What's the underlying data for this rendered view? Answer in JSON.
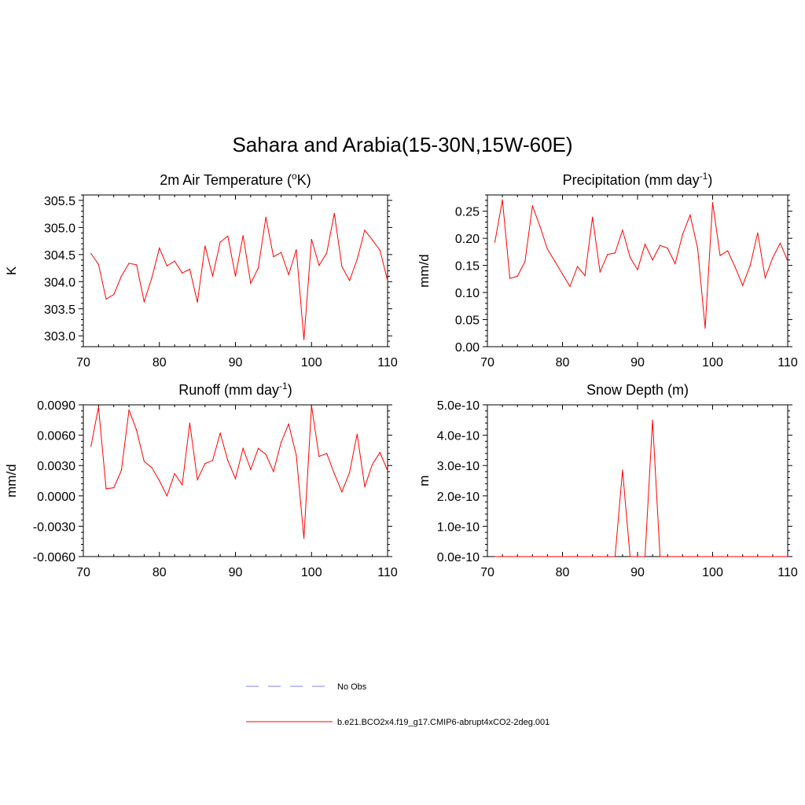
{
  "figure": {
    "title": "Sahara and Arabia(15-30N,15W-60E)"
  },
  "colors": {
    "model_line": "#ff0000",
    "obs_line": "#9999ff",
    "axis": "#000000"
  },
  "legend": {
    "obs_label": "No Obs",
    "model_label": "b.e21.BCO2x4.f19_g17.CMIP6-abrupt4xCO2-2deg.001"
  },
  "chart_data": [
    {
      "type": "line",
      "id": "temp",
      "title_main": "2m Air Temperature (",
      "title_sup": "o",
      "title_tail": "K)",
      "ylabel": "K",
      "xlim": [
        70,
        110
      ],
      "ylim": [
        302.8,
        305.6
      ],
      "xticks": [
        70,
        80,
        90,
        100,
        110
      ],
      "xtick_labels": [
        "70",
        "80",
        "90",
        "100",
        "110"
      ],
      "yticks": [
        303.0,
        303.5,
        304.0,
        304.5,
        305.0,
        305.5
      ],
      "ytick_labels": [
        "303.0",
        "303.5",
        "304.0",
        "304.5",
        "305.0",
        "305.5"
      ],
      "series": [
        {
          "name": "b.e21.BCO2x4.f19_g17.CMIP6-abrupt4xCO2-2deg.001",
          "x": [
            71,
            72,
            73,
            74,
            75,
            76,
            77,
            78,
            79,
            80,
            81,
            82,
            83,
            84,
            85,
            86,
            87,
            88,
            89,
            90,
            91,
            92,
            93,
            94,
            95,
            96,
            97,
            98,
            99,
            100,
            101,
            102,
            103,
            104,
            105,
            106,
            107,
            108,
            109,
            110
          ],
          "y": [
            304.52,
            304.32,
            303.68,
            303.76,
            304.1,
            304.34,
            304.31,
            303.63,
            304.07,
            304.62,
            304.29,
            304.38,
            304.16,
            304.23,
            303.62,
            304.66,
            304.1,
            304.73,
            304.84,
            304.1,
            304.85,
            303.97,
            304.25,
            305.19,
            304.46,
            304.54,
            304.13,
            304.59,
            302.93,
            304.78,
            304.3,
            304.53,
            305.26,
            304.28,
            304.02,
            304.41,
            304.95,
            304.77,
            304.58,
            304.02
          ]
        }
      ]
    },
    {
      "type": "line",
      "id": "precip",
      "title_main": "Precipitation (mm day",
      "title_sup": "-1",
      "title_tail": ")",
      "ylabel": "mm/d",
      "xlim": [
        70,
        110
      ],
      "ylim": [
        0.0,
        0.28
      ],
      "xticks": [
        70,
        80,
        90,
        100,
        110
      ],
      "xtick_labels": [
        "70",
        "80",
        "90",
        "100",
        "110"
      ],
      "yticks": [
        0.0,
        0.05,
        0.1,
        0.15,
        0.2,
        0.25
      ],
      "ytick_labels": [
        "0.00",
        "0.05",
        "0.10",
        "0.15",
        "0.20",
        "0.25"
      ],
      "series": [
        {
          "name": "b.e21.BCO2x4.f19_g17.CMIP6-abrupt4xCO2-2deg.001",
          "x": [
            71,
            72,
            73,
            74,
            75,
            76,
            77,
            78,
            79,
            80,
            81,
            82,
            83,
            84,
            85,
            86,
            87,
            88,
            89,
            90,
            91,
            92,
            93,
            94,
            95,
            96,
            97,
            98,
            99,
            100,
            101,
            102,
            103,
            104,
            105,
            106,
            107,
            108,
            109,
            110
          ],
          "y": [
            0.193,
            0.271,
            0.126,
            0.13,
            0.157,
            0.26,
            0.222,
            0.18,
            0.157,
            0.134,
            0.111,
            0.148,
            0.131,
            0.239,
            0.138,
            0.17,
            0.173,
            0.215,
            0.165,
            0.142,
            0.189,
            0.16,
            0.187,
            0.182,
            0.153,
            0.207,
            0.243,
            0.182,
            0.034,
            0.266,
            0.168,
            0.177,
            0.147,
            0.113,
            0.15,
            0.21,
            0.127,
            0.164,
            0.191,
            0.158
          ]
        }
      ]
    },
    {
      "type": "line",
      "id": "runoff",
      "title_main": "Runoff (mm day",
      "title_sup": "-1",
      "title_tail": ")",
      "ylabel": "mm/d",
      "xlim": [
        70,
        110
      ],
      "ylim": [
        -0.006,
        0.009
      ],
      "xticks": [
        70,
        80,
        90,
        100,
        110
      ],
      "xtick_labels": [
        "70",
        "80",
        "90",
        "100",
        "110"
      ],
      "yticks": [
        -0.006,
        -0.003,
        0.0,
        0.003,
        0.006,
        0.009
      ],
      "ytick_labels": [
        "-0.0060",
        "-0.0030",
        "0.0000",
        "0.0030",
        "0.0060",
        "0.0090"
      ],
      "series": [
        {
          "name": "b.e21.BCO2x4.f19_g17.CMIP6-abrupt4xCO2-2deg.001",
          "x": [
            71,
            72,
            73,
            74,
            75,
            76,
            77,
            78,
            79,
            80,
            81,
            82,
            83,
            84,
            85,
            86,
            87,
            88,
            89,
            90,
            91,
            92,
            93,
            94,
            95,
            96,
            97,
            98,
            99,
            100,
            101,
            102,
            103,
            104,
            105,
            106,
            107,
            108,
            109,
            110
          ],
          "y": [
            0.0049,
            0.0088,
            0.0007,
            0.0008,
            0.0025,
            0.0085,
            0.0065,
            0.0034,
            0.0028,
            0.0015,
            0.0,
            0.0022,
            0.0011,
            0.0072,
            0.0016,
            0.0032,
            0.0035,
            0.0062,
            0.0035,
            0.0017,
            0.0047,
            0.0026,
            0.0047,
            0.0041,
            0.0024,
            0.0053,
            0.0071,
            0.004,
            -0.0042,
            0.0089,
            0.0039,
            0.0042,
            0.0022,
            0.0004,
            0.0023,
            0.0061,
            0.0009,
            0.0031,
            0.0043,
            0.0025
          ]
        }
      ]
    },
    {
      "type": "line",
      "id": "snow",
      "title_main": "Snow Depth (m)",
      "title_sup": "",
      "title_tail": "",
      "ylabel": "m",
      "xlim": [
        70,
        110
      ],
      "ylim": [
        0.0,
        5e-10
      ],
      "xticks": [
        70,
        80,
        90,
        100,
        110
      ],
      "xtick_labels": [
        "70",
        "80",
        "90",
        "100",
        "110"
      ],
      "yticks": [
        0.0,
        1e-10,
        2e-10,
        3e-10,
        4e-10,
        5e-10
      ],
      "ytick_labels": [
        "0.0e-10",
        "1.0e-10",
        "2.0e-10",
        "3.0e-10",
        "4.0e-10",
        "5.0e-10"
      ],
      "series": [
        {
          "name": "b.e21.BCO2x4.f19_g17.CMIP6-abrupt4xCO2-2deg.001",
          "x": [
            71,
            72,
            73,
            74,
            75,
            76,
            77,
            78,
            79,
            80,
            81,
            82,
            83,
            84,
            85,
            86,
            87,
            88,
            89,
            90,
            91,
            92,
            93,
            94,
            95,
            96,
            97,
            98,
            99,
            100,
            101,
            102,
            103,
            104,
            105,
            106,
            107,
            108,
            109,
            110
          ],
          "y": [
            0,
            0,
            0,
            0,
            0,
            0,
            0,
            0,
            0,
            0,
            0,
            0,
            0,
            0,
            0,
            0,
            0,
            2.85e-10,
            0,
            0,
            0,
            4.5e-10,
            0,
            0,
            0,
            0,
            0,
            0,
            0,
            0,
            0,
            0,
            0,
            0,
            0,
            0,
            0,
            0,
            0,
            0
          ]
        }
      ]
    }
  ]
}
